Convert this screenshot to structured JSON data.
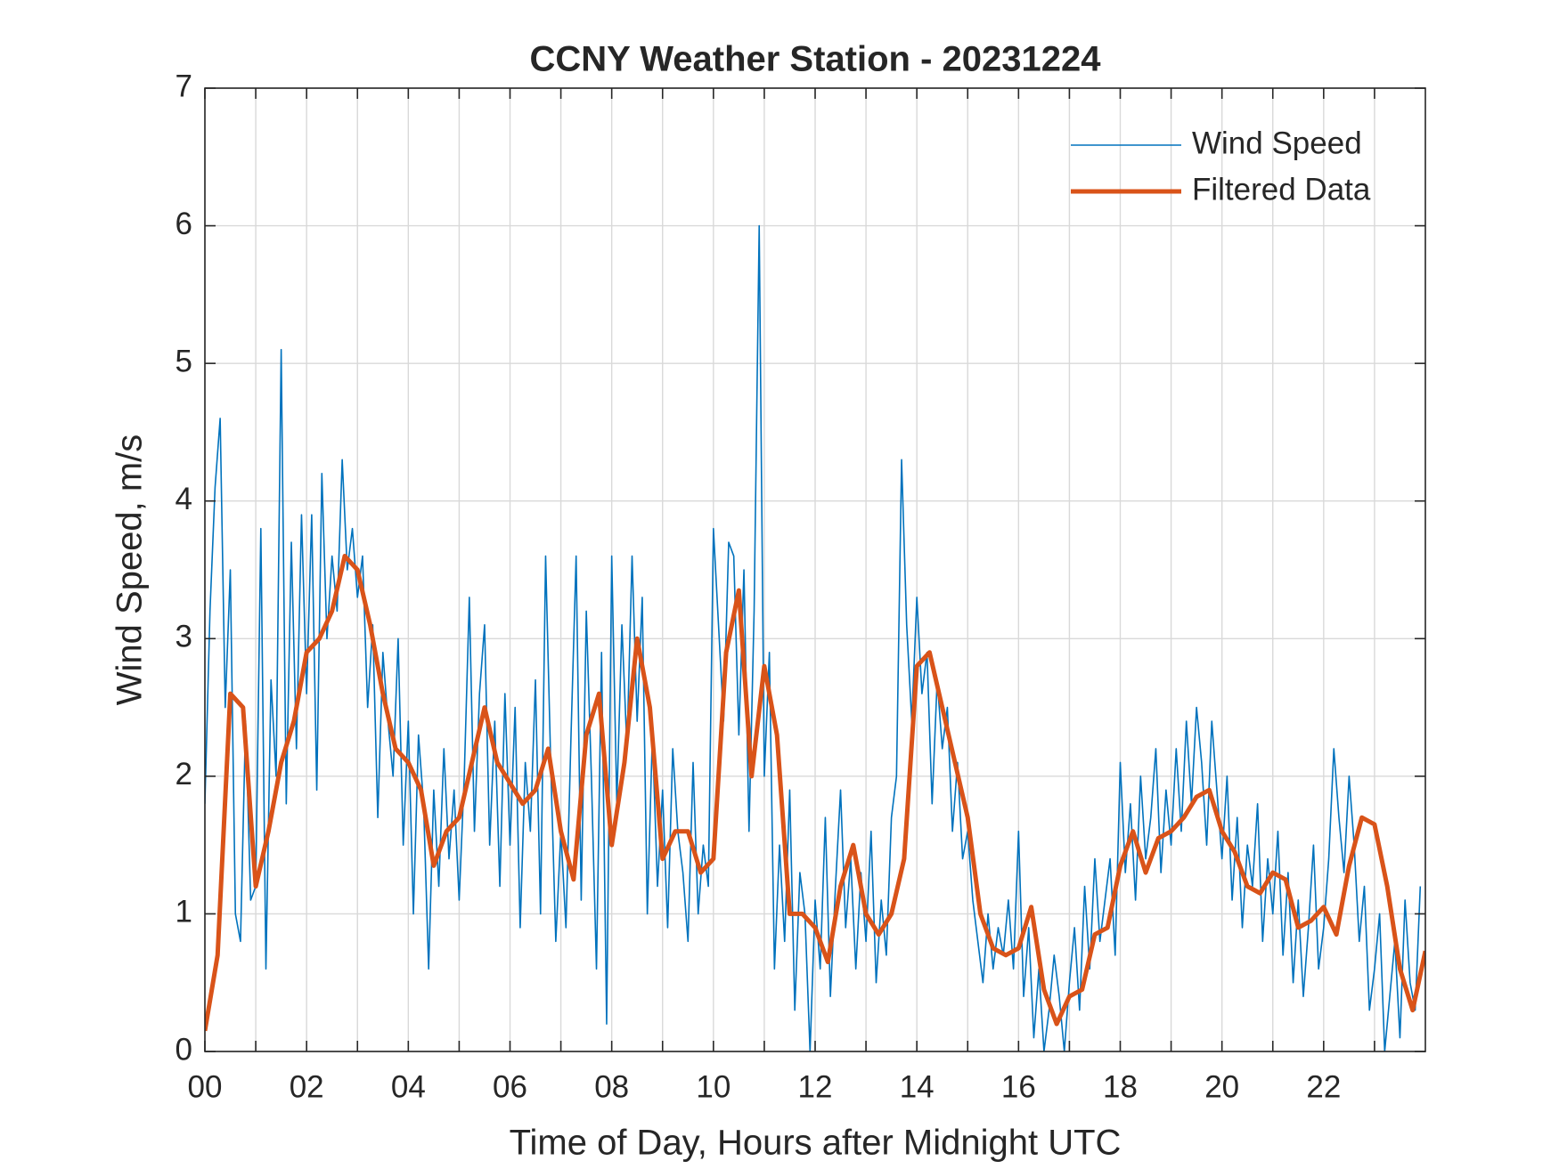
{
  "chart_data": {
    "type": "line",
    "title": "CCNY Weather Station - 20231224",
    "x_label": "Time of Day, Hours after Midnight UTC",
    "y_label": "Wind Speed, m/s",
    "xlim": [
      0,
      24
    ],
    "ylim": [
      0,
      7
    ],
    "xticks": [
      {
        "value": 0,
        "label": "00"
      },
      {
        "value": 2,
        "label": "02"
      },
      {
        "value": 4,
        "label": "04"
      },
      {
        "value": 6,
        "label": "06"
      },
      {
        "value": 8,
        "label": "08"
      },
      {
        "value": 10,
        "label": "10"
      },
      {
        "value": 12,
        "label": "12"
      },
      {
        "value": 14,
        "label": "14"
      },
      {
        "value": 16,
        "label": "16"
      },
      {
        "value": 18,
        "label": "18"
      },
      {
        "value": 20,
        "label": "20"
      },
      {
        "value": 22,
        "label": "22"
      }
    ],
    "xminorticks": [
      1,
      3,
      5,
      7,
      9,
      11,
      13,
      15,
      17,
      19,
      21,
      23
    ],
    "yticks": [
      0,
      1,
      2,
      3,
      4,
      5,
      6,
      7
    ],
    "grid": true,
    "legend": "upper right",
    "series": [
      {
        "name": "Wind Speed",
        "color": "#0072BD",
        "width": 1.6,
        "x": [
          0,
          0.1,
          0.2,
          0.3,
          0.4,
          0.5,
          0.6,
          0.7,
          0.8,
          0.9,
          1,
          1.1,
          1.2,
          1.3,
          1.4,
          1.5,
          1.6,
          1.7,
          1.8,
          1.9,
          2,
          2.1,
          2.2,
          2.3,
          2.4,
          2.5,
          2.6,
          2.7,
          2.8,
          2.9,
          3,
          3.1,
          3.2,
          3.3,
          3.4,
          3.5,
          3.6,
          3.7,
          3.8,
          3.9,
          4,
          4.1,
          4.2,
          4.3,
          4.4,
          4.5,
          4.6,
          4.7,
          4.8,
          4.9,
          5,
          5.1,
          5.2,
          5.3,
          5.4,
          5.5,
          5.6,
          5.7,
          5.8,
          5.9,
          6,
          6.1,
          6.2,
          6.3,
          6.4,
          6.5,
          6.6,
          6.7,
          6.8,
          6.9,
          7,
          7.1,
          7.2,
          7.3,
          7.4,
          7.5,
          7.6,
          7.7,
          7.8,
          7.9,
          8,
          8.1,
          8.2,
          8.3,
          8.4,
          8.5,
          8.6,
          8.7,
          8.8,
          8.9,
          9,
          9.1,
          9.2,
          9.3,
          9.4,
          9.5,
          9.6,
          9.7,
          9.8,
          9.9,
          10,
          10.1,
          10.2,
          10.3,
          10.4,
          10.5,
          10.6,
          10.7,
          10.8,
          10.9,
          11,
          11.1,
          11.2,
          11.3,
          11.4,
          11.5,
          11.6,
          11.7,
          11.8,
          11.9,
          12,
          12.1,
          12.2,
          12.3,
          12.4,
          12.5,
          12.6,
          12.7,
          12.8,
          12.9,
          13,
          13.1,
          13.2,
          13.3,
          13.4,
          13.5,
          13.6,
          13.7,
          13.8,
          13.9,
          14,
          14.1,
          14.2,
          14.3,
          14.4,
          14.5,
          14.6,
          14.7,
          14.8,
          14.9,
          15,
          15.1,
          15.2,
          15.3,
          15.4,
          15.5,
          15.6,
          15.7,
          15.8,
          15.9,
          16,
          16.1,
          16.2,
          16.3,
          16.4,
          16.5,
          16.6,
          16.7,
          16.8,
          16.9,
          17,
          17.1,
          17.2,
          17.3,
          17.4,
          17.5,
          17.6,
          17.7,
          17.8,
          17.9,
          18,
          18.1,
          18.2,
          18.3,
          18.4,
          18.5,
          18.6,
          18.7,
          18.8,
          18.9,
          19,
          19.1,
          19.2,
          19.3,
          19.4,
          19.5,
          19.6,
          19.7,
          19.8,
          19.9,
          20,
          20.1,
          20.2,
          20.3,
          20.4,
          20.5,
          20.6,
          20.7,
          20.8,
          20.9,
          21,
          21.1,
          21.2,
          21.3,
          21.4,
          21.5,
          21.6,
          21.7,
          21.8,
          21.9,
          22,
          22.1,
          22.2,
          22.3,
          22.4,
          22.5,
          22.6,
          22.7,
          22.8,
          22.9,
          23,
          23.1,
          23.2,
          23.3,
          23.4,
          23.5,
          23.6,
          23.7,
          23.8,
          23.9
        ],
        "values": [
          1.8,
          3.2,
          4.1,
          4.6,
          2.5,
          3.5,
          1.0,
          0.8,
          2.4,
          1.1,
          1.2,
          3.8,
          0.6,
          2.7,
          2.0,
          5.1,
          1.8,
          3.7,
          2.2,
          3.9,
          2.6,
          3.9,
          1.9,
          4.2,
          3.0,
          3.6,
          3.2,
          4.3,
          3.5,
          3.8,
          3.3,
          3.6,
          2.5,
          3.1,
          1.7,
          2.9,
          2.4,
          2.0,
          3.0,
          1.5,
          2.4,
          1.0,
          2.3,
          1.8,
          0.6,
          1.9,
          1.2,
          2.2,
          1.4,
          1.9,
          1.1,
          2.0,
          3.3,
          1.6,
          2.6,
          3.1,
          1.5,
          2.4,
          1.2,
          2.6,
          1.5,
          2.5,
          0.9,
          2.1,
          1.6,
          2.7,
          1.0,
          3.6,
          2.1,
          0.8,
          1.6,
          0.9,
          2.3,
          3.6,
          1.1,
          3.2,
          2.0,
          0.6,
          2.9,
          0.2,
          3.6,
          1.8,
          3.1,
          2.2,
          3.6,
          2.4,
          3.3,
          1.0,
          2.3,
          1.2,
          1.9,
          0.9,
          2.2,
          1.6,
          1.3,
          0.8,
          2.1,
          1.0,
          1.5,
          1.2,
          3.8,
          3.1,
          2.4,
          3.7,
          3.6,
          2.3,
          3.5,
          1.6,
          3.2,
          6.0,
          2.0,
          2.9,
          0.6,
          1.5,
          0.8,
          1.9,
          0.3,
          1.3,
          1.0,
          0.0,
          1.1,
          0.6,
          1.7,
          0.4,
          1.2,
          1.9,
          0.9,
          1.4,
          0.6,
          1.3,
          0.8,
          1.6,
          0.5,
          1.1,
          0.7,
          1.7,
          2.0,
          4.3,
          3.1,
          2.4,
          3.3,
          2.6,
          2.9,
          1.8,
          2.7,
          2.2,
          2.5,
          1.6,
          2.1,
          1.4,
          1.6,
          1.1,
          0.8,
          0.5,
          1.0,
          0.6,
          0.9,
          0.7,
          1.1,
          0.6,
          1.6,
          0.4,
          0.9,
          0.1,
          0.6,
          0.0,
          0.3,
          0.7,
          0.4,
          0.0,
          0.5,
          0.9,
          0.3,
          1.2,
          0.6,
          1.4,
          0.8,
          1.1,
          1.4,
          0.7,
          2.1,
          1.3,
          1.8,
          1.1,
          2.0,
          1.4,
          1.7,
          2.2,
          1.3,
          1.9,
          1.5,
          2.2,
          1.6,
          2.4,
          1.8,
          2.5,
          2.1,
          1.5,
          2.4,
          1.9,
          1.4,
          2.0,
          1.1,
          1.7,
          0.9,
          1.5,
          1.2,
          1.8,
          0.8,
          1.4,
          1.0,
          1.6,
          0.7,
          1.3,
          0.5,
          1.1,
          0.4,
          0.9,
          1.5,
          0.6,
          0.9,
          1.4,
          2.2,
          1.7,
          1.3,
          2.0,
          1.5,
          0.8,
          1.2,
          0.3,
          0.6,
          1.0,
          0.0,
          0.4,
          0.8,
          0.1,
          1.1,
          0.5,
          0.3,
          1.2
        ]
      },
      {
        "name": "Filtered Data",
        "color": "#D95319",
        "width": 5,
        "x": [
          0,
          0.25,
          0.5,
          0.75,
          1,
          1.25,
          1.5,
          1.75,
          2,
          2.25,
          2.5,
          2.75,
          3,
          3.25,
          3.5,
          3.75,
          4,
          4.25,
          4.5,
          4.75,
          5,
          5.25,
          5.5,
          5.75,
          6,
          6.25,
          6.5,
          6.75,
          7,
          7.25,
          7.5,
          7.75,
          8,
          8.25,
          8.5,
          8.75,
          9,
          9.25,
          9.5,
          9.75,
          10,
          10.25,
          10.5,
          10.75,
          11,
          11.25,
          11.5,
          11.75,
          12,
          12.25,
          12.5,
          12.75,
          13,
          13.25,
          13.5,
          13.75,
          14,
          14.25,
          14.5,
          14.75,
          15,
          15.25,
          15.5,
          15.75,
          16,
          16.25,
          16.5,
          16.75,
          17,
          17.25,
          17.5,
          17.75,
          18,
          18.25,
          18.5,
          18.75,
          19,
          19.25,
          19.5,
          19.75,
          20,
          20.25,
          20.5,
          20.75,
          21,
          21.25,
          21.5,
          21.75,
          22,
          22.25,
          22.5,
          22.75,
          23,
          23.25,
          23.5,
          23.75,
          24
        ],
        "values": [
          0.15,
          0.7,
          2.6,
          2.5,
          1.2,
          1.6,
          2.1,
          2.4,
          2.9,
          3.0,
          3.2,
          3.6,
          3.5,
          3.1,
          2.6,
          2.2,
          2.1,
          1.9,
          1.35,
          1.6,
          1.7,
          2.1,
          2.5,
          2.1,
          1.95,
          1.8,
          1.9,
          2.2,
          1.6,
          1.25,
          2.3,
          2.6,
          1.5,
          2.1,
          3.0,
          2.5,
          1.4,
          1.6,
          1.6,
          1.3,
          1.4,
          2.9,
          3.35,
          2.0,
          2.8,
          2.3,
          1.0,
          1.0,
          0.9,
          0.65,
          1.2,
          1.5,
          1.0,
          0.85,
          1.0,
          1.4,
          2.8,
          2.9,
          2.5,
          2.1,
          1.7,
          1.0,
          0.75,
          0.7,
          0.75,
          1.05,
          0.45,
          0.2,
          0.4,
          0.45,
          0.85,
          0.9,
          1.35,
          1.6,
          1.3,
          1.55,
          1.6,
          1.7,
          1.85,
          1.9,
          1.6,
          1.45,
          1.2,
          1.15,
          1.3,
          1.25,
          0.9,
          0.95,
          1.05,
          0.85,
          1.35,
          1.7,
          1.65,
          1.2,
          0.6,
          0.3,
          0.73
        ]
      }
    ]
  }
}
